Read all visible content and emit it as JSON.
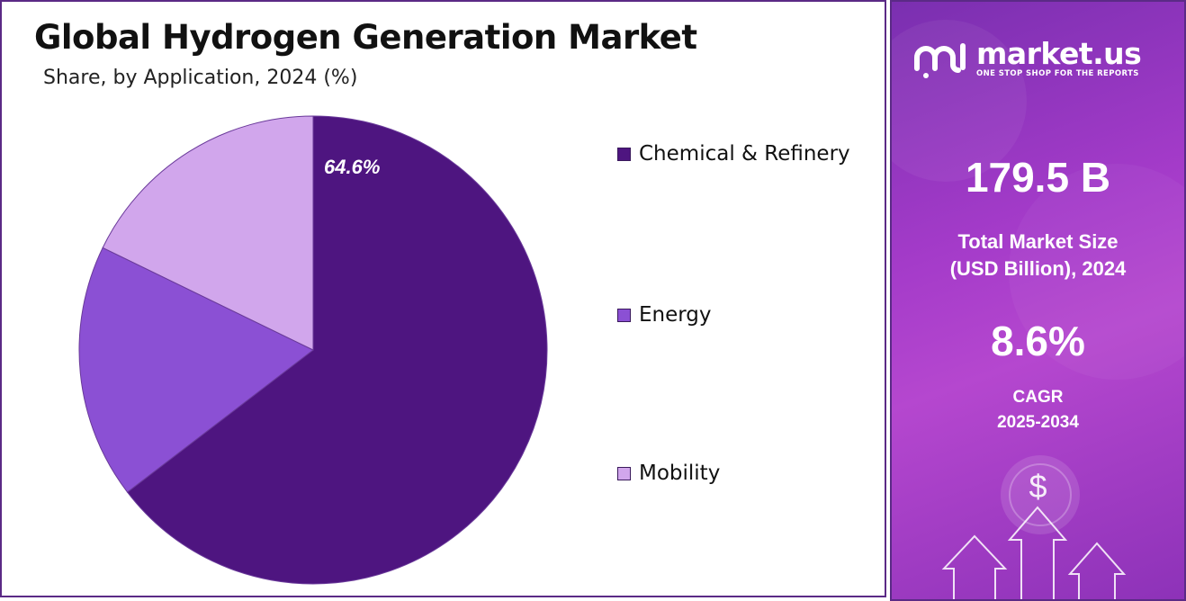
{
  "title": "Global Hydrogen Generation Market",
  "subtitle": "Share, by Application, 2024 (%)",
  "chart_data": {
    "type": "pie",
    "series": [
      {
        "name": "Chemical & Refinery",
        "value": 64.6,
        "color": "#4e1580",
        "label": "64.6%"
      },
      {
        "name": "Energy",
        "value": 17.6,
        "color": "#8b50d4",
        "label": ""
      },
      {
        "name": "Mobility",
        "value": 17.8,
        "color": "#d1a6ec",
        "label": ""
      }
    ],
    "legend_position": "right"
  },
  "brand": {
    "name": "market.us",
    "tagline": "ONE STOP SHOP FOR THE REPORTS",
    "logo_icon": "market-us-logo-icon"
  },
  "stats": {
    "market_size_value": "179.5 B",
    "market_size_label_line1": "Total Market Size",
    "market_size_label_line2": "(USD Billion), 2024",
    "cagr_value": "8.6%",
    "cagr_label_line1": "CAGR",
    "cagr_label_line2": "2025-2034"
  },
  "decor": {
    "dollar_symbol": "$",
    "icons": [
      "dollar-icon",
      "up-arrow-icon"
    ]
  }
}
